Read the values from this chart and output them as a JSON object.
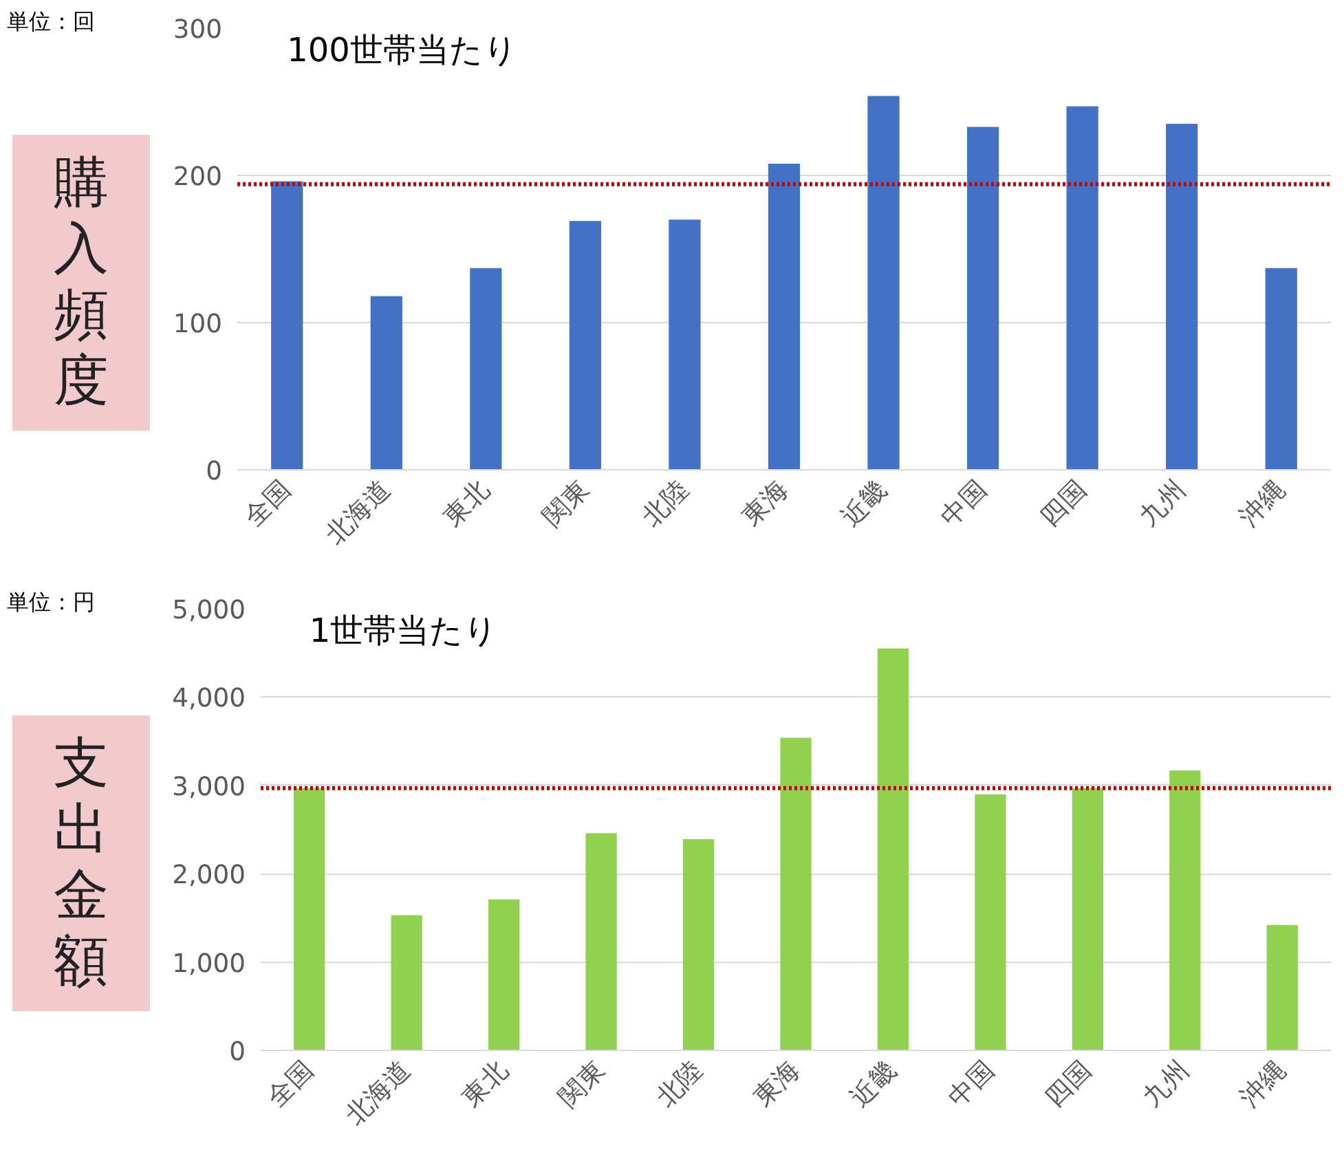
{
  "chart_data": [
    {
      "type": "bar",
      "title": "100世帯当たり",
      "ylabel": "購入頻度",
      "annotations": [
        "単位：回"
      ],
      "categories": [
        "全国",
        "北海道",
        "東北",
        "関東",
        "北陸",
        "東海",
        "近畿",
        "中国",
        "四国",
        "九州",
        "沖縄"
      ],
      "series": [
        {
          "color": "#4472c4",
          "values": [
            196,
            118,
            137,
            169,
            170,
            208,
            254,
            233,
            247,
            235,
            137
          ]
        }
      ],
      "ylim": [
        0,
        300
      ],
      "yticks": [
        0,
        100,
        200,
        300
      ],
      "grid": "y",
      "ref_lines": [
        {
          "axis": "y",
          "value": 194,
          "label": null,
          "color": "#c00000",
          "line_style": "dotted"
        }
      ]
    },
    {
      "type": "bar",
      "title": "1世帯当たり",
      "ylabel": "支出金額",
      "annotations": [
        "単位：円"
      ],
      "categories": [
        "全国",
        "北海道",
        "東北",
        "関東",
        "北陸",
        "東海",
        "近畿",
        "中国",
        "四国",
        "九州",
        "沖縄"
      ],
      "series": [
        {
          "color": "#92d050",
          "values": [
            2970,
            1530,
            1710,
            2460,
            2390,
            3540,
            4550,
            2900,
            2970,
            3170,
            1420
          ]
        }
      ],
      "ylim": [
        0,
        5000
      ],
      "yticks": [
        0,
        {
          "value": 1000,
          "label": "1,000"
        },
        {
          "value": 2000,
          "label": "2,000"
        },
        {
          "value": 3000,
          "label": "3,000"
        },
        {
          "value": 4000,
          "label": "4,000"
        },
        {
          "value": 5000,
          "label": "5,000"
        }
      ],
      "grid": "y",
      "ref_lines": [
        {
          "axis": "y",
          "value": 2970,
          "label": null,
          "color": "#c00000",
          "line_style": "dotted"
        }
      ]
    }
  ]
}
